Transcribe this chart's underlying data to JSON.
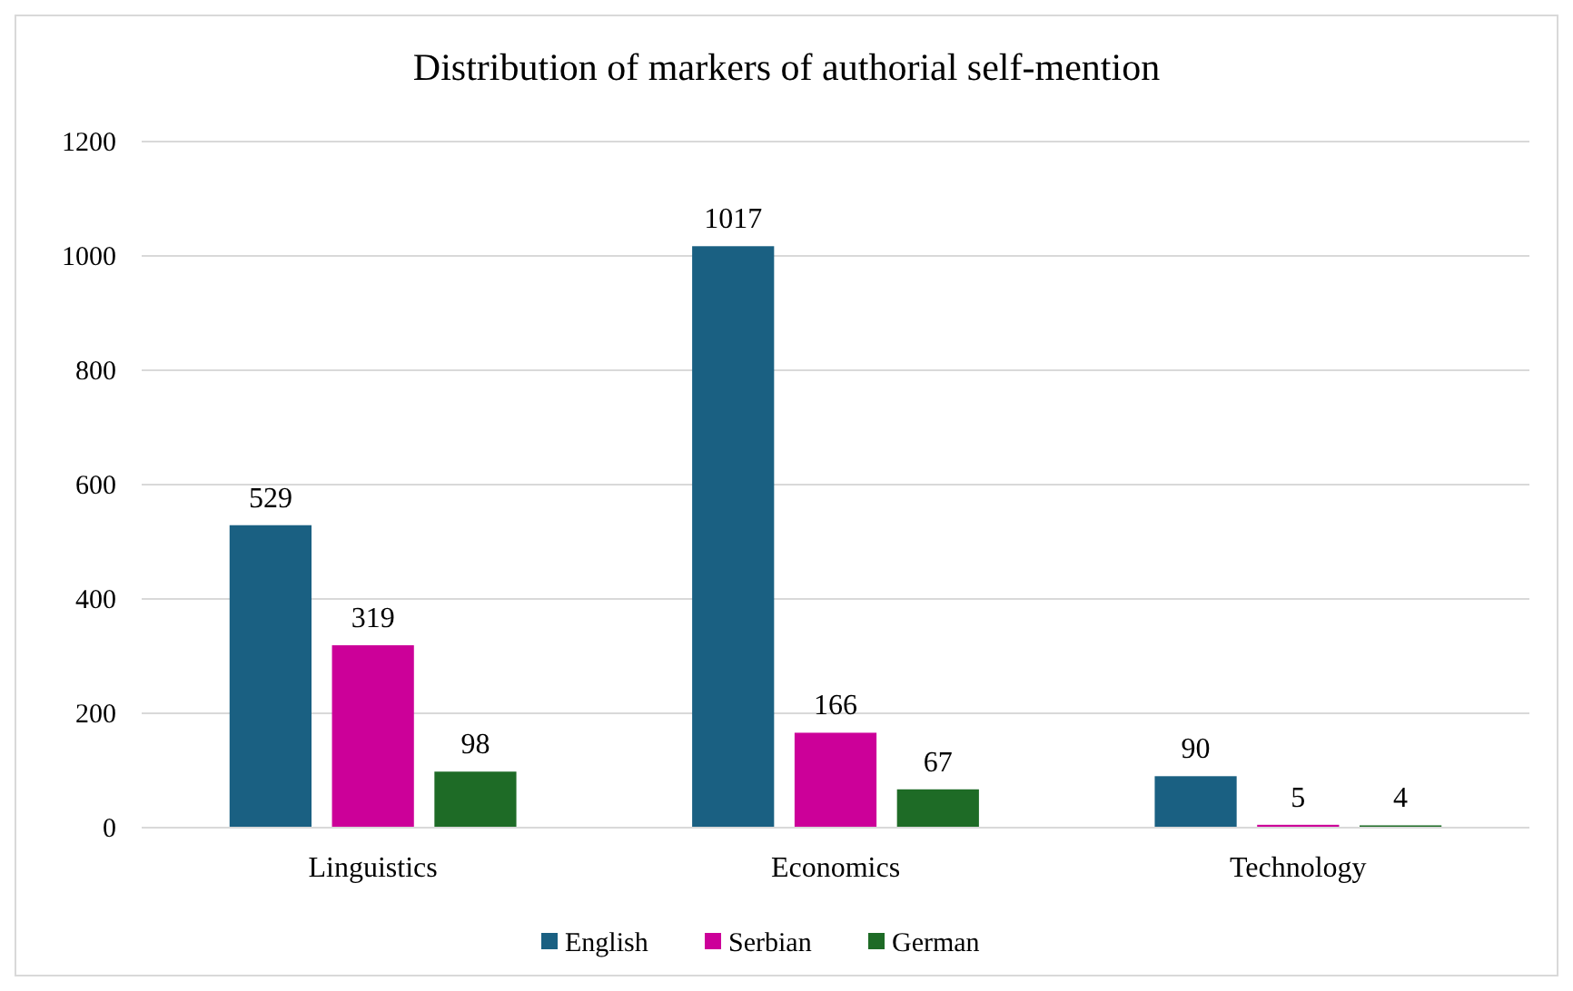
{
  "chart_data": {
    "type": "bar",
    "title": "Distribution of markers of authorial self-mention",
    "categories": [
      "Linguistics",
      "Economics",
      "Technology"
    ],
    "series": [
      {
        "name": "English",
        "color": "#1a6082",
        "values": [
          529,
          1017,
          90
        ]
      },
      {
        "name": "Serbian",
        "color": "#cc0099",
        "values": [
          319,
          166,
          5
        ]
      },
      {
        "name": "German",
        "color": "#1e6b26",
        "values": [
          98,
          67,
          4
        ]
      }
    ],
    "ylim": [
      0,
      1200
    ],
    "yticks": [
      0,
      200,
      400,
      600,
      800,
      1000,
      1200
    ],
    "grid": "y",
    "legend": "bottom",
    "data_labels": true
  }
}
